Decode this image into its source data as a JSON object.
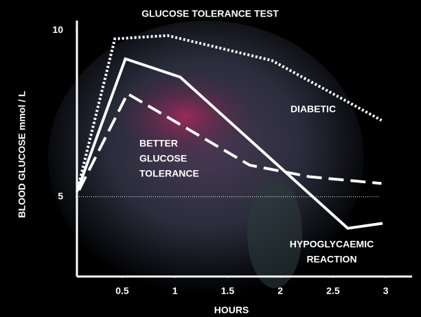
{
  "chart_data": {
    "type": "line",
    "title": "GLUCOSE TOLERANCE TEST",
    "ylabel": "BLOOD GLUCOSE mmol / L",
    "xlabel": "HOURS",
    "xlim": [
      0.07,
      3.25
    ],
    "ylim": [
      2.6,
      10.3
    ],
    "xticks": [
      0.5,
      1,
      1.5,
      2,
      2.5,
      3
    ],
    "yticks": [
      5,
      10
    ],
    "reference_line": 5,
    "series": [
      {
        "label": [
          "DIABETIC"
        ],
        "color": "#ffffff",
        "style": "dotted",
        "x": [
          0.07,
          0.43,
          0.93,
          1.92,
          2.96
        ],
        "values": [
          5.15,
          9.75,
          9.85,
          9.1,
          7.3
        ]
      },
      {
        "label": [
          "BETTER",
          "GLUCOSE",
          "TOLERANCE"
        ],
        "color": "#ffffff",
        "style": "dashed",
        "x": [
          0.09,
          0.55,
          1.71,
          2.28,
          2.96
        ],
        "values": [
          5.2,
          8.1,
          5.95,
          5.6,
          5.4
        ]
      },
      {
        "label": [
          "HYPOGLYCAEMIC",
          "REACTION"
        ],
        "color": "#ffffff",
        "style": "solid",
        "x": [
          0.07,
          0.53,
          1.05,
          2.64,
          2.97
        ],
        "values": [
          5.15,
          9.15,
          8.6,
          4.05,
          4.2
        ]
      }
    ]
  }
}
